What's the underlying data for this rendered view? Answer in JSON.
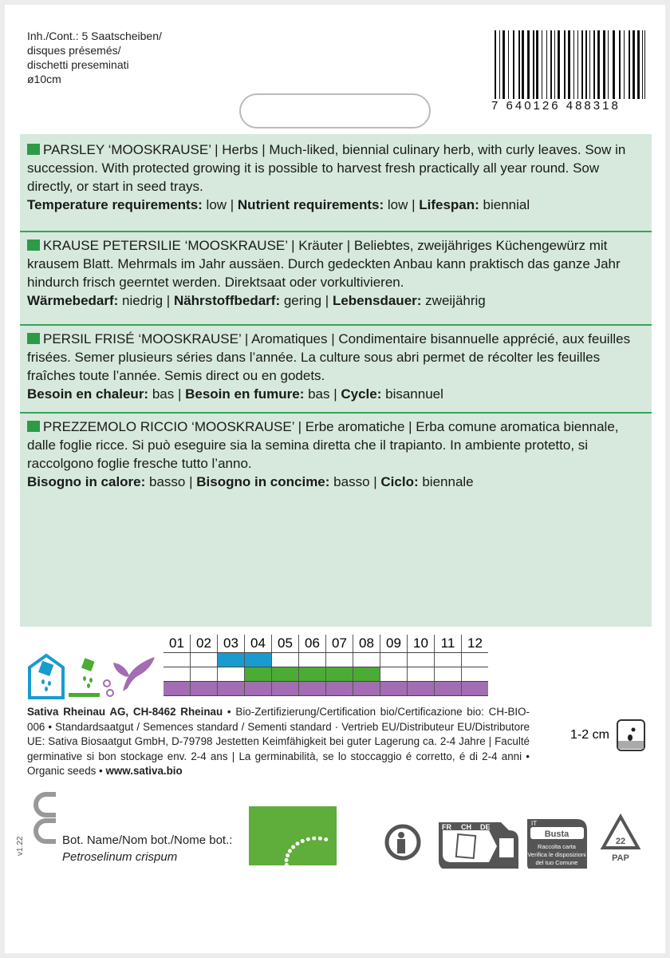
{
  "contents": [
    "Inh./Cont.: 5 Saatscheiben/",
    "disques présemés/",
    "dischetti preseminati",
    "ø10cm"
  ],
  "barcode_number": "7 640126 488318",
  "sections": [
    {
      "heading": "PARSLEY ‘MOOSKRAUSE’",
      "text": " | Herbs | Much-liked, biennial culinary herb, with curly leaves. Sow in succession. With protected growing it is possible to harvest fresh practically all year round. Sow directly, or start in seed trays.",
      "props": [
        {
          "k": "Temperature requirements:",
          "v": " low | "
        },
        {
          "k": "Nutrient requirements:",
          "v": " low | "
        },
        {
          "k": "Lifespan:",
          "v": " biennial"
        }
      ]
    },
    {
      "heading": "KRAUSE PETERSILIE ‘MOOSKRAUSE’",
      "text": " | Kräuter | Beliebtes, zweijähriges Küchengewürz mit krausem Blatt. Mehrmals im Jahr aussäen. Durch gedeckten Anbau kann praktisch das ganze Jahr hindurch frisch geerntet werden. Direktsaat oder vorkultivieren.",
      "props": [
        {
          "k": "Wärmebedarf:",
          "v": " niedrig | "
        },
        {
          "k": "Nährstoffbedarf:",
          "v": " gering | "
        },
        {
          "k": "Lebensdauer:",
          "v": " zweijährig"
        }
      ]
    },
    {
      "heading": "PERSIL FRISÉ ‘MOOSKRAUSE’",
      "text": " | Aromatiques | Condimentaire bisannuelle apprécié, aux feuilles frisées. Semer plusieurs séries dans l’année. La culture sous abri permet de récolter les feuilles fraîches toute l’année. Semis direct ou en godets.",
      "props": [
        {
          "k": "Besoin en chaleur:",
          "v": " bas | "
        },
        {
          "k": "Besoin en fumure:",
          "v": " bas | "
        },
        {
          "k": "Cycle:",
          "v": " bisannuel"
        }
      ]
    },
    {
      "heading": "PREZZEMOLO RICCIO ‘MOOSKRAUSE’",
      "text": " | Erbe aromatiche | Erba comune aromatica biennale, dalle foglie ricce. Si può eseguire sia la semina diretta che il trapianto. In ambiente protetto, si raccolgono foglie fresche tutto l’anno.",
      "props": [
        {
          "k": "Bisogno in calore:",
          "v": " basso | "
        },
        {
          "k": "Bisogno in concime:",
          "v": " basso | "
        },
        {
          "k": "Ciclo:",
          "v": " biennale"
        }
      ]
    }
  ],
  "calendar": {
    "months": [
      "01",
      "02",
      "03",
      "04",
      "05",
      "06",
      "07",
      "08",
      "09",
      "10",
      "11",
      "12"
    ],
    "rows": [
      {
        "icon": "greenhouse-sowing-icon",
        "color": "#1a9bd0",
        "months": [
          3,
          4
        ]
      },
      {
        "icon": "direct-sowing-icon",
        "color": "#4aac33",
        "months": [
          4,
          5,
          6,
          7,
          8
        ]
      },
      {
        "icon": "harvest-icon",
        "color": "#a26db2",
        "months": [
          1,
          2,
          3,
          4,
          5,
          6,
          7,
          8,
          9,
          10,
          11,
          12
        ]
      }
    ]
  },
  "footer": {
    "company": "Sativa Rheinau AG, CH-8462 Rheinau",
    "text": " • Bio-Zertifizierung/Certification bio/Certificazione bio: CH-BIO-006 • Standardsaatgut / Semences standard / Sementi standard · Vertrieb EU/Distributeur EU/Distributore UE: Sativa Biosaatgut GmbH, D-79798 Jestetten Keimfähigkeit bei guter Lagerung ca. 2-4 Jahre | Faculté germinative si bon stockage env. 2-4 ans | La germinabilità, se lo stoccaggio é corretto, é di 2-4 anni • Organic seeds • ",
    "url": "www.sativa.bio"
  },
  "sowing_depth": "1-2 cm",
  "version": "v1.22",
  "botanical": {
    "label": "Bot. Name/Nom bot./Nome bot.:",
    "name": "Petroselinum crispum"
  },
  "recycling": {
    "countries": [
      "FR",
      "CH",
      "DE"
    ],
    "it_label": "IT",
    "busta": "Busta",
    "it_text": [
      "Raccolta carta",
      "Verifica le disposizioni",
      "del tuo Comune"
    ],
    "pap_number": "22",
    "pap": "PAP"
  }
}
